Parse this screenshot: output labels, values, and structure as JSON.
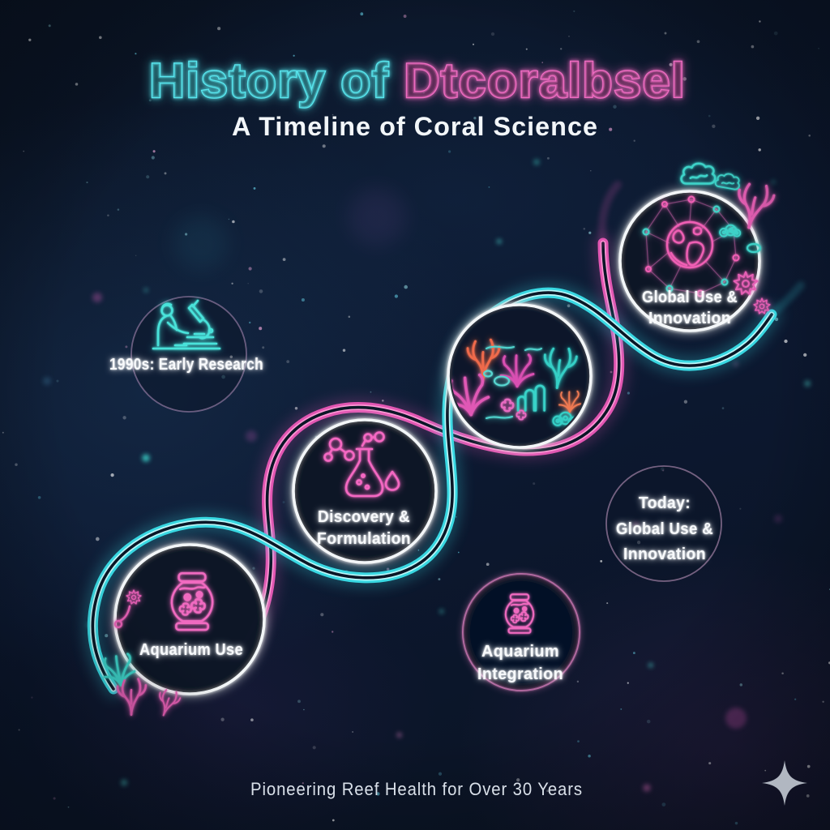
{
  "header": {
    "title_part1": "History of",
    "title_part2": "Dtcoralbsel",
    "subtitle": "A Timeline of Coral Science"
  },
  "nodes": {
    "early_research": {
      "label": "1990s: Early Research"
    },
    "global_top": {
      "line1": "Global Use &",
      "line2": "Innovation"
    },
    "discovery": {
      "line1": "Discovery &",
      "line2": "Formulation"
    },
    "today": {
      "line1": "Today:",
      "line2": "Global Use &",
      "line3": "Innovation"
    },
    "aquarium_use": {
      "label": "Aquarium Use"
    },
    "aquarium_integration": {
      "line1": "Aquarium",
      "line2": "Integration"
    }
  },
  "footer": {
    "tagline": "Pioneering Reef Health for Over 30 Years"
  },
  "icons": {
    "early_research": "microscope-researcher-icon",
    "global_top": "globe-network-icon",
    "center_circle": "coral-reef-illustration",
    "discovery": "flask-molecule-icon",
    "aquarium_use": "fishbowl-icon",
    "aquarium_integration": "fishbowl-icon",
    "footer": "sparkle-icon"
  },
  "colors": {
    "background": "#0b1628",
    "neon_cyan": "#38d8e2",
    "neon_pink": "#e256b2",
    "ring_white": "#f3f6f8",
    "coral_orange": "#ef6a4b",
    "coral_magenta": "#d94fb2",
    "coral_teal": "#35cfc6",
    "label_white": "#f7f9fb"
  }
}
